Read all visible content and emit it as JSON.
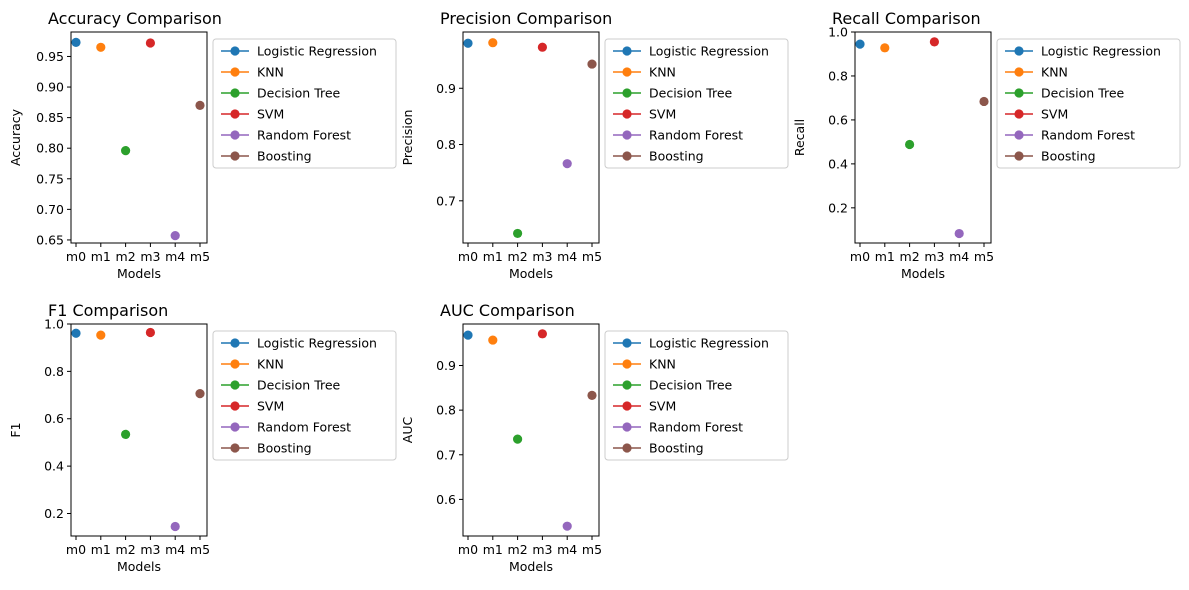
{
  "colors": {
    "Logistic Regression": "#1f77b4",
    "KNN": "#ff7f0e",
    "Decision Tree": "#2ca02c",
    "SVM": "#d62728",
    "Random Forest": "#9467bd",
    "Boosting": "#8c564b"
  },
  "chart_data": [
    {
      "type": "scatter",
      "title": "Accuracy Comparison",
      "xlabel": "Models",
      "ylabel": "Accuracy",
      "categories": [
        "m0",
        "m1",
        "m2",
        "m3",
        "m4",
        "m5"
      ],
      "ylim": [
        0.645,
        0.99
      ],
      "yticks": [
        "0.65",
        "0.70",
        "0.75",
        "0.80",
        "0.85",
        "0.90",
        "0.95"
      ],
      "legend": "outside-right",
      "series": [
        {
          "name": "Logistic Regression",
          "x": "m0",
          "value": 0.973
        },
        {
          "name": "KNN",
          "x": "m1",
          "value": 0.965
        },
        {
          "name": "Decision Tree",
          "x": "m2",
          "value": 0.796
        },
        {
          "name": "SVM",
          "x": "m3",
          "value": 0.972
        },
        {
          "name": "Random Forest",
          "x": "m4",
          "value": 0.657
        },
        {
          "name": "Boosting",
          "x": "m5",
          "value": 0.87
        }
      ]
    },
    {
      "type": "scatter",
      "title": "Precision Comparison",
      "xlabel": "Models",
      "ylabel": "Precision",
      "categories": [
        "m0",
        "m1",
        "m2",
        "m3",
        "m4",
        "m5"
      ],
      "ylim": [
        0.625,
        1.0
      ],
      "yticks": [
        "0.7",
        "0.8",
        "0.9"
      ],
      "legend": "outside-right",
      "series": [
        {
          "name": "Logistic Regression",
          "x": "m0",
          "value": 0.98
        },
        {
          "name": "KNN",
          "x": "m1",
          "value": 0.981
        },
        {
          "name": "Decision Tree",
          "x": "m2",
          "value": 0.642
        },
        {
          "name": "SVM",
          "x": "m3",
          "value": 0.973
        },
        {
          "name": "Random Forest",
          "x": "m4",
          "value": 0.766
        },
        {
          "name": "Boosting",
          "x": "m5",
          "value": 0.943
        }
      ]
    },
    {
      "type": "scatter",
      "title": "Recall Comparison",
      "xlabel": "Models",
      "ylabel": "Recall",
      "categories": [
        "m0",
        "m1",
        "m2",
        "m3",
        "m4",
        "m5"
      ],
      "ylim": [
        0.04,
        1.0
      ],
      "yticks": [
        "0.2",
        "0.4",
        "0.6",
        "0.8",
        "1.0"
      ],
      "legend": "outside-right",
      "series": [
        {
          "name": "Logistic Regression",
          "x": "m0",
          "value": 0.945
        },
        {
          "name": "KNN",
          "x": "m1",
          "value": 0.928
        },
        {
          "name": "Decision Tree",
          "x": "m2",
          "value": 0.488
        },
        {
          "name": "SVM",
          "x": "m3",
          "value": 0.955
        },
        {
          "name": "Random Forest",
          "x": "m4",
          "value": 0.083
        },
        {
          "name": "Boosting",
          "x": "m5",
          "value": 0.684
        }
      ]
    },
    {
      "type": "scatter",
      "title": "F1 Comparison",
      "xlabel": "Models",
      "ylabel": "F1",
      "categories": [
        "m0",
        "m1",
        "m2",
        "m3",
        "m4",
        "m5"
      ],
      "ylim": [
        0.105,
        1.0
      ],
      "yticks": [
        "0.2",
        "0.4",
        "0.6",
        "0.8",
        "1.0"
      ],
      "legend": "outside-right",
      "series": [
        {
          "name": "Logistic Regression",
          "x": "m0",
          "value": 0.961
        },
        {
          "name": "KNN",
          "x": "m1",
          "value": 0.953
        },
        {
          "name": "Decision Tree",
          "x": "m2",
          "value": 0.534
        },
        {
          "name": "SVM",
          "x": "m3",
          "value": 0.964
        },
        {
          "name": "Random Forest",
          "x": "m4",
          "value": 0.145
        },
        {
          "name": "Boosting",
          "x": "m5",
          "value": 0.706
        }
      ]
    },
    {
      "type": "scatter",
      "title": "AUC Comparison",
      "xlabel": "Models",
      "ylabel": "AUC",
      "categories": [
        "m0",
        "m1",
        "m2",
        "m3",
        "m4",
        "m5"
      ],
      "ylim": [
        0.518,
        0.993
      ],
      "yticks": [
        "0.6",
        "0.7",
        "0.8",
        "0.9"
      ],
      "legend": "outside-right",
      "series": [
        {
          "name": "Logistic Regression",
          "x": "m0",
          "value": 0.968
        },
        {
          "name": "KNN",
          "x": "m1",
          "value": 0.957
        },
        {
          "name": "Decision Tree",
          "x": "m2",
          "value": 0.735
        },
        {
          "name": "SVM",
          "x": "m3",
          "value": 0.971
        },
        {
          "name": "Random Forest",
          "x": "m4",
          "value": 0.54
        },
        {
          "name": "Boosting",
          "x": "m5",
          "value": 0.833
        }
      ]
    }
  ]
}
